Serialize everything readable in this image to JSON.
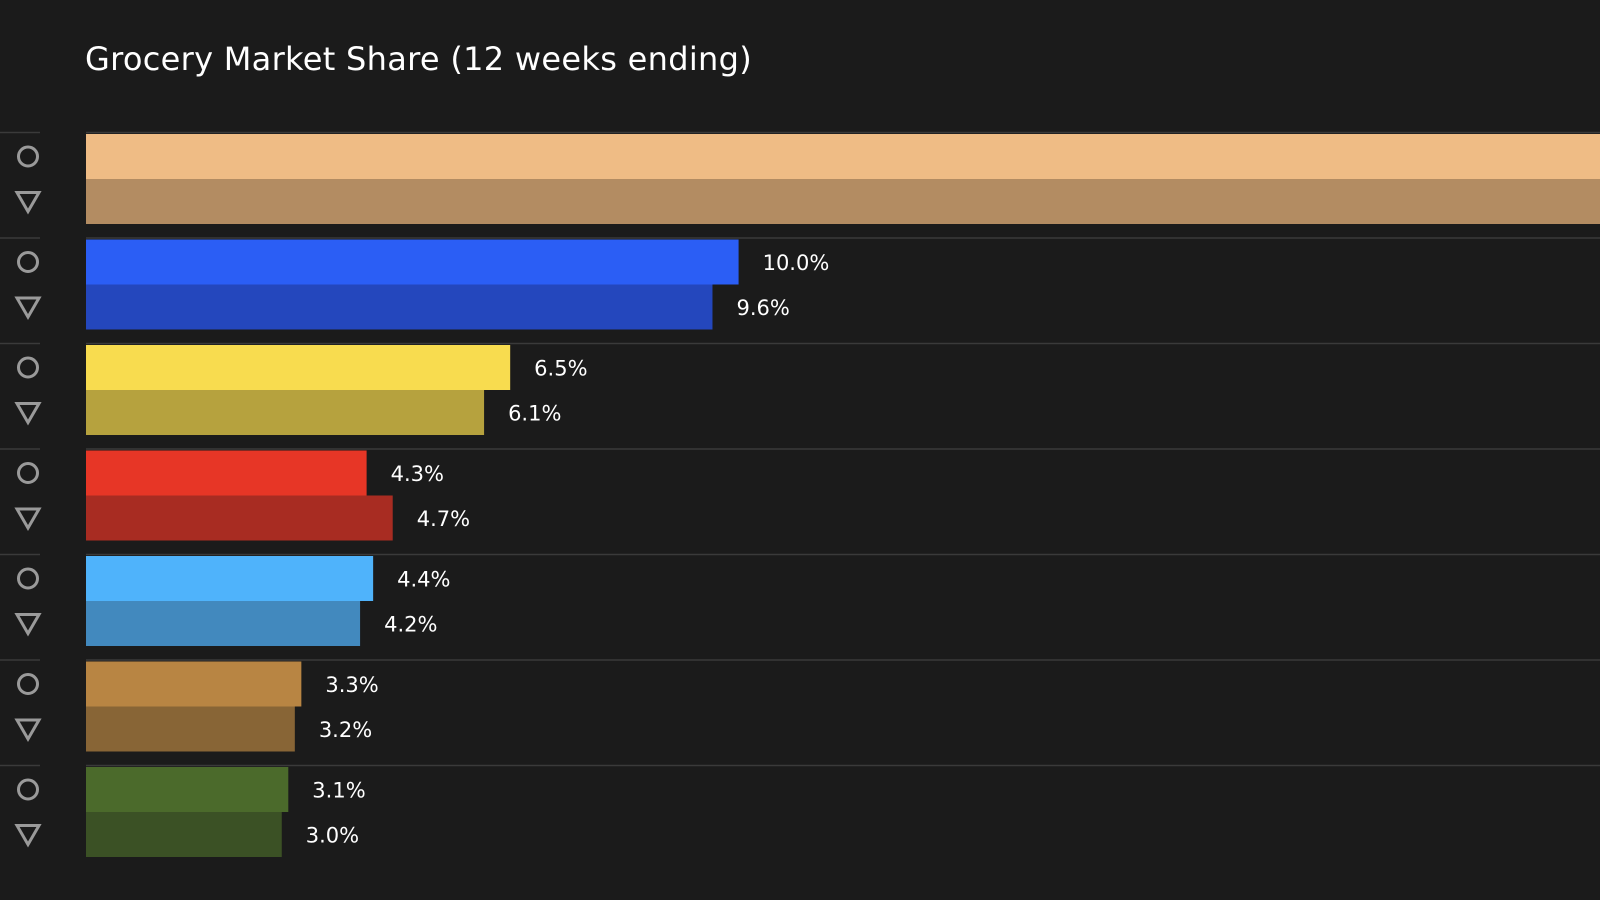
{
  "chart_data": {
    "type": "bar",
    "title": "Grocery Market Share (12 weeks ending)",
    "orientation": "horizontal",
    "xlim": [
      0,
      23.2
    ],
    "grid": false,
    "legend": "none",
    "markers": [
      "circle",
      "triangle-down"
    ],
    "groups": [
      {
        "values": [
          23.2,
          23.2
        ],
        "labels": [
          "",
          ""
        ],
        "colors": [
          "#efbc85",
          "#b38c62"
        ]
      },
      {
        "values": [
          10.0,
          9.6
        ],
        "labels": [
          "10.0%",
          "9.6%"
        ],
        "colors": [
          "#2b5ef5",
          "#2447bd"
        ]
      },
      {
        "values": [
          6.5,
          6.1
        ],
        "labels": [
          "6.5%",
          "6.1%"
        ],
        "colors": [
          "#f8dc4f",
          "#b6a23e"
        ]
      },
      {
        "values": [
          4.3,
          4.7
        ],
        "labels": [
          "4.3%",
          "4.7%"
        ],
        "colors": [
          "#e73626",
          "#a82c22"
        ]
      },
      {
        "values": [
          4.4,
          4.2
        ],
        "labels": [
          "4.4%",
          "4.2%"
        ],
        "colors": [
          "#4fb3fb",
          "#4289be"
        ]
      },
      {
        "values": [
          3.3,
          3.2
        ],
        "labels": [
          "3.3%",
          "3.2%"
        ],
        "colors": [
          "#b88543",
          "#886536"
        ]
      },
      {
        "values": [
          3.1,
          3.0
        ],
        "labels": [
          "3.1%",
          "3.0%"
        ],
        "colors": [
          "#4b6a2b",
          "#3b5125"
        ]
      }
    ]
  }
}
